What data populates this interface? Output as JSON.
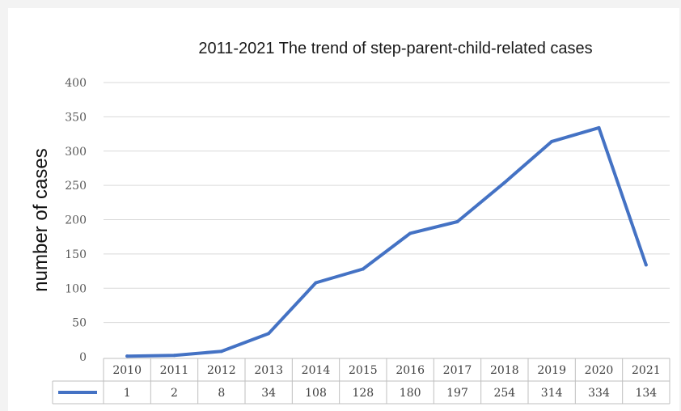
{
  "chart_data": {
    "type": "line",
    "title": "2011-2021 The trend of step-parent-child-related cases",
    "xlabel": "",
    "ylabel": "number of cases",
    "categories": [
      "2010",
      "2011",
      "2012",
      "2013",
      "2014",
      "2015",
      "2016",
      "2017",
      "2018",
      "2019",
      "2020",
      "2021"
    ],
    "series": [
      {
        "values": [
          1,
          2,
          8,
          34,
          108,
          128,
          180,
          197,
          254,
          314,
          334,
          134
        ]
      }
    ],
    "ylim": [
      0,
      400
    ],
    "yticks": [
      0,
      50,
      100,
      150,
      200,
      250,
      300,
      350,
      400
    ],
    "grid": true,
    "legend": "data table below x-axis",
    "colors": {
      "line": "#4472c4",
      "grid": "#d9d9d9",
      "table_border": "#bfbfbf"
    }
  }
}
